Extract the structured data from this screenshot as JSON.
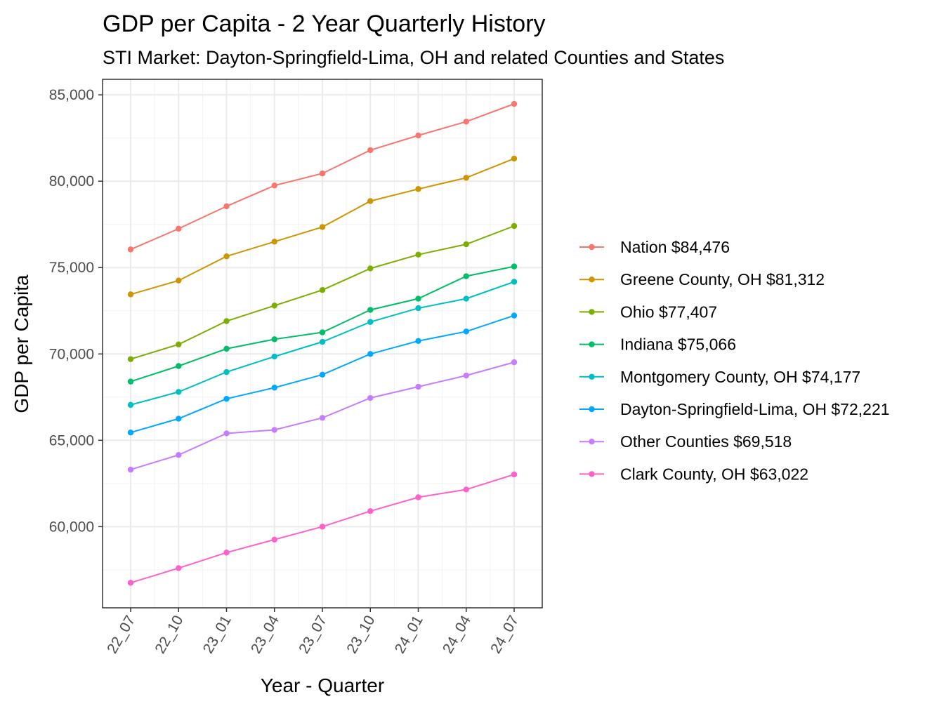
{
  "chart_data": {
    "type": "line",
    "title": "GDP per Capita - 2 Year Quarterly History",
    "subtitle": "STI Market: Dayton-Springfield-Lima, OH and related Counties and States",
    "xlabel": "Year - Quarter",
    "ylabel": "GDP per Capita",
    "categories": [
      "22_07",
      "22_10",
      "23_01",
      "23_04",
      "23_07",
      "23_10",
      "24_01",
      "24_04",
      "24_07"
    ],
    "yticks": [
      60000,
      65000,
      70000,
      75000,
      80000,
      85000
    ],
    "ytick_labels": [
      "60,000",
      "65,000",
      "70,000",
      "75,000",
      "80,000",
      "85,000"
    ],
    "ylim": [
      55300,
      85900
    ],
    "grid": true,
    "legend_position": "right",
    "series": [
      {
        "name": "Nation $84,476",
        "color": "#F8766D",
        "values": [
          76050,
          77250,
          78550,
          79750,
          80450,
          81800,
          82650,
          83450,
          84476
        ]
      },
      {
        "name": "Greene County, OH $81,312",
        "color": "#CD9600",
        "values": [
          73450,
          74250,
          75650,
          76500,
          77350,
          78850,
          79550,
          80200,
          81312
        ]
      },
      {
        "name": "Ohio $77,407",
        "color": "#7CAE00",
        "values": [
          69700,
          70550,
          71900,
          72800,
          73700,
          74950,
          75750,
          76350,
          77407
        ]
      },
      {
        "name": "Indiana $75,066",
        "color": "#00BE67",
        "values": [
          68400,
          69300,
          70300,
          70850,
          71250,
          72550,
          73200,
          74500,
          75066
        ]
      },
      {
        "name": "Montgomery County, OH $74,177",
        "color": "#00BFC4",
        "values": [
          67050,
          67800,
          68950,
          69850,
          70700,
          71850,
          72650,
          73200,
          74177
        ]
      },
      {
        "name": "Dayton-Springfield-Lima, OH $72,221",
        "color": "#00A9FF",
        "values": [
          65450,
          66250,
          67400,
          68050,
          68800,
          70000,
          70750,
          71300,
          72221
        ]
      },
      {
        "name": "Other Counties $69,518",
        "color": "#C77CFF",
        "values": [
          63300,
          64150,
          65400,
          65600,
          66300,
          67450,
          68100,
          68750,
          69518
        ]
      },
      {
        "name": "Clark County, OH $63,022",
        "color": "#FF61CC",
        "values": [
          56750,
          57600,
          58500,
          59250,
          60000,
          60900,
          61700,
          62150,
          63022
        ]
      }
    ]
  }
}
